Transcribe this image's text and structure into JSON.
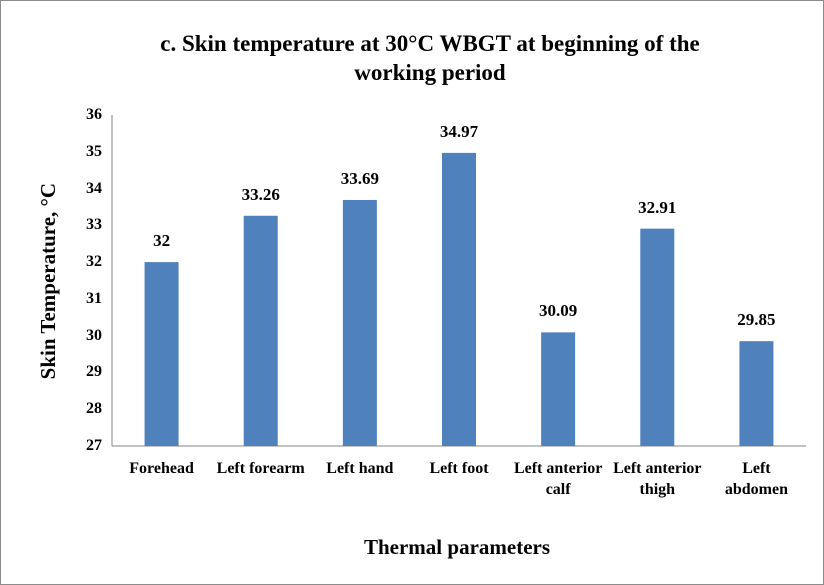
{
  "chart_data": {
    "type": "bar",
    "title": "c. Skin temperature at 30°C WBGT at beginning of the working period",
    "x_label": "Thermal parameters",
    "y_label": "Skin Temperature, °C",
    "categories": [
      "Forehead",
      "Left forearm",
      "Left hand",
      "Left foot",
      "Left anterior calf",
      "Left anterior thigh",
      "Left abdomen"
    ],
    "values": [
      32,
      33.26,
      33.69,
      34.97,
      30.09,
      32.91,
      29.85
    ],
    "color": "#4f81bd",
    "ylim": [
      27,
      36
    ],
    "yticks": [
      27,
      28,
      29,
      30,
      31,
      32,
      33,
      34,
      35,
      36
    ],
    "grid": false
  }
}
